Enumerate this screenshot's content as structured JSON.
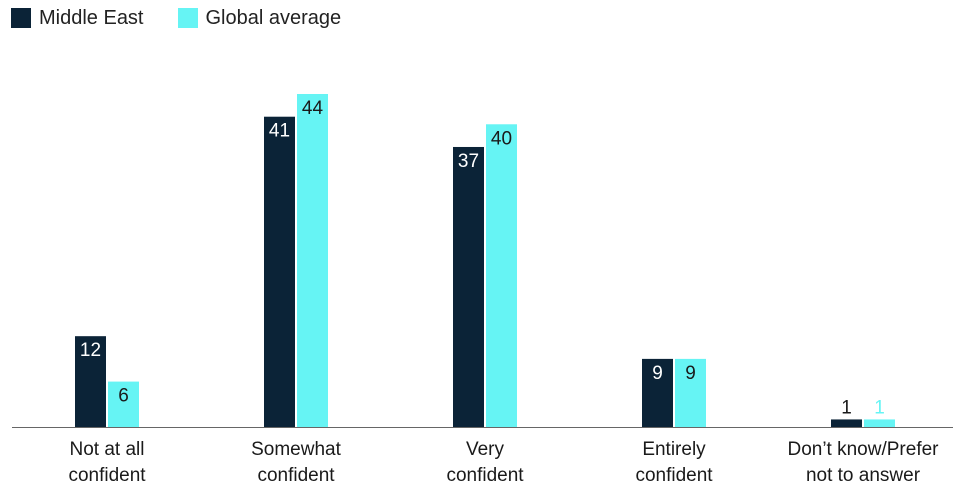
{
  "colors": {
    "middle_east": "#0b2337",
    "global": "#66f4f4",
    "axis": "#666666",
    "label_dark": "#ffffff",
    "label_light": "#1a1a1a"
  },
  "chart_data": {
    "type": "bar",
    "title": "",
    "xlabel": "",
    "ylabel": "",
    "ylim": [
      0,
      44
    ],
    "categories": [
      [
        "Not at all",
        "confident"
      ],
      [
        "Somewhat",
        "confident"
      ],
      [
        "Very",
        "confident"
      ],
      [
        "Entirely",
        "confident"
      ],
      [
        "Don’t know/Prefer",
        "not to answer"
      ]
    ],
    "series": [
      {
        "name": "Middle East",
        "values": [
          12,
          41,
          37,
          9,
          1
        ]
      },
      {
        "name": "Global average",
        "values": [
          6,
          44,
          40,
          9,
          1
        ]
      }
    ],
    "legend_position": "top-left",
    "grid": false
  }
}
